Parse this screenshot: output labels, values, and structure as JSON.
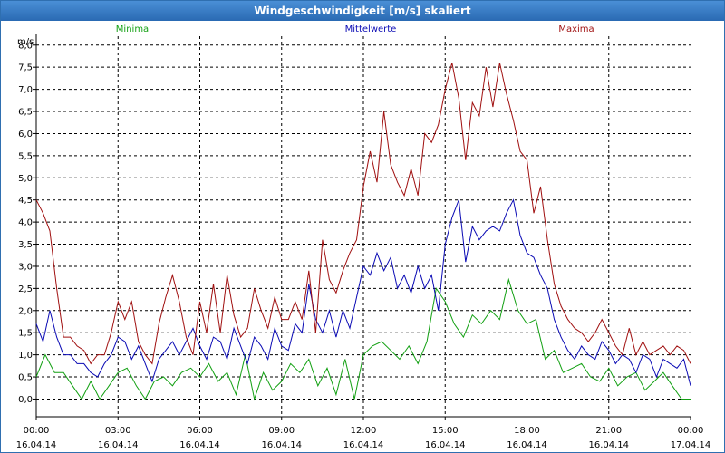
{
  "window": {
    "title": "Windgeschwindigkeit [m/s] skaliert"
  },
  "colors": {
    "minima": "#12a012",
    "mittelwerte": "#0a0ab4",
    "maxima": "#a01010",
    "grid": "#000000"
  },
  "chart_data": {
    "type": "line",
    "title": "Windgeschwindigkeit [m/s] skaliert",
    "ylabel": "m/s",
    "ylim": [
      -0.4,
      8.2
    ],
    "yticks": [
      "0,0",
      "0,5",
      "1,0",
      "1,5",
      "2,0",
      "2,5",
      "3,0",
      "3,5",
      "4,0",
      "4,5",
      "5,0",
      "5,5",
      "6,0",
      "6,5",
      "7,0",
      "7,5",
      "8,0"
    ],
    "xticks": [
      {
        "time": "00:00",
        "date": "16.04.14"
      },
      {
        "time": "03:00",
        "date": "16.04.14"
      },
      {
        "time": "06:00",
        "date": "16.04.14"
      },
      {
        "time": "09:00",
        "date": "16.04.14"
      },
      {
        "time": "12:00",
        "date": "16.04.14"
      },
      {
        "time": "15:00",
        "date": "16.04.14"
      },
      {
        "time": "18:00",
        "date": "16.04.14"
      },
      {
        "time": "21:00",
        "date": "16.04.14"
      },
      {
        "time": "00:00",
        "date": "17.04.14"
      }
    ],
    "x_hours_range": [
      0,
      24
    ],
    "legend": [
      "Minima",
      "Mittelwerte",
      "Maxima"
    ],
    "series": [
      {
        "name": "Minima",
        "color": "#12a012",
        "points": [
          [
            0,
            0.5
          ],
          [
            0.33,
            1.0
          ],
          [
            0.67,
            0.6
          ],
          [
            1,
            0.6
          ],
          [
            1.33,
            0.3
          ],
          [
            1.67,
            0.0
          ],
          [
            2,
            0.4
          ],
          [
            2.33,
            0.0
          ],
          [
            2.67,
            0.3
          ],
          [
            3,
            0.6
          ],
          [
            3.33,
            0.7
          ],
          [
            3.67,
            0.3
          ],
          [
            4,
            0.0
          ],
          [
            4.33,
            0.4
          ],
          [
            4.67,
            0.5
          ],
          [
            5,
            0.3
          ],
          [
            5.33,
            0.6
          ],
          [
            5.67,
            0.7
          ],
          [
            6,
            0.5
          ],
          [
            6.33,
            0.8
          ],
          [
            6.67,
            0.4
          ],
          [
            7,
            0.6
          ],
          [
            7.33,
            0.1
          ],
          [
            7.67,
            1.0
          ],
          [
            8,
            0.0
          ],
          [
            8.33,
            0.6
          ],
          [
            8.67,
            0.2
          ],
          [
            9,
            0.4
          ],
          [
            9.33,
            0.8
          ],
          [
            9.67,
            0.6
          ],
          [
            10,
            0.9
          ],
          [
            10.33,
            0.3
          ],
          [
            10.67,
            0.7
          ],
          [
            11,
            0.1
          ],
          [
            11.33,
            0.9
          ],
          [
            11.67,
            0.0
          ],
          [
            12,
            1.0
          ],
          [
            12.33,
            1.2
          ],
          [
            12.67,
            1.3
          ],
          [
            13,
            1.1
          ],
          [
            13.33,
            0.9
          ],
          [
            13.67,
            1.2
          ],
          [
            14,
            0.8
          ],
          [
            14.33,
            1.3
          ],
          [
            14.67,
            2.5
          ],
          [
            15,
            2.2
          ],
          [
            15.33,
            1.7
          ],
          [
            15.67,
            1.4
          ],
          [
            16,
            1.9
          ],
          [
            16.33,
            1.7
          ],
          [
            16.67,
            2.0
          ],
          [
            17,
            1.8
          ],
          [
            17.33,
            2.7
          ],
          [
            17.67,
            2.0
          ],
          [
            18,
            1.7
          ],
          [
            18.33,
            1.8
          ],
          [
            18.67,
            0.9
          ],
          [
            19,
            1.1
          ],
          [
            19.33,
            0.6
          ],
          [
            19.67,
            0.7
          ],
          [
            20,
            0.8
          ],
          [
            20.33,
            0.5
          ],
          [
            20.67,
            0.4
          ],
          [
            21,
            0.7
          ],
          [
            21.33,
            0.3
          ],
          [
            21.67,
            0.5
          ],
          [
            22,
            0.6
          ],
          [
            22.33,
            0.2
          ],
          [
            22.67,
            0.4
          ],
          [
            23,
            0.6
          ],
          [
            23.33,
            0.3
          ],
          [
            23.67,
            0.0
          ],
          [
            24,
            0.0
          ]
        ]
      },
      {
        "name": "Mittelwerte",
        "color": "#0a0ab4",
        "points": [
          [
            0,
            1.7
          ],
          [
            0.25,
            1.3
          ],
          [
            0.5,
            2.0
          ],
          [
            0.75,
            1.4
          ],
          [
            1,
            1.0
          ],
          [
            1.25,
            1.0
          ],
          [
            1.5,
            0.8
          ],
          [
            1.75,
            0.8
          ],
          [
            2,
            0.6
          ],
          [
            2.25,
            0.5
          ],
          [
            2.5,
            0.8
          ],
          [
            2.75,
            1.0
          ],
          [
            3,
            1.4
          ],
          [
            3.25,
            1.3
          ],
          [
            3.5,
            0.9
          ],
          [
            3.75,
            1.2
          ],
          [
            4,
            0.8
          ],
          [
            4.25,
            0.4
          ],
          [
            4.5,
            0.9
          ],
          [
            4.75,
            1.1
          ],
          [
            5,
            1.3
          ],
          [
            5.25,
            1.0
          ],
          [
            5.5,
            1.3
          ],
          [
            5.75,
            1.6
          ],
          [
            6,
            1.2
          ],
          [
            6.25,
            0.9
          ],
          [
            6.5,
            1.4
          ],
          [
            6.75,
            1.3
          ],
          [
            7,
            0.9
          ],
          [
            7.25,
            1.6
          ],
          [
            7.5,
            1.2
          ],
          [
            7.75,
            0.8
          ],
          [
            8,
            1.4
          ],
          [
            8.25,
            1.2
          ],
          [
            8.5,
            0.9
          ],
          [
            8.75,
            1.6
          ],
          [
            9,
            1.2
          ],
          [
            9.25,
            1.1
          ],
          [
            9.5,
            1.7
          ],
          [
            9.75,
            1.5
          ],
          [
            10,
            2.6
          ],
          [
            10.25,
            1.8
          ],
          [
            10.5,
            1.5
          ],
          [
            10.75,
            2.0
          ],
          [
            11,
            1.4
          ],
          [
            11.25,
            2.0
          ],
          [
            11.5,
            1.6
          ],
          [
            11.75,
            2.3
          ],
          [
            12,
            3.0
          ],
          [
            12.25,
            2.8
          ],
          [
            12.5,
            3.3
          ],
          [
            12.75,
            2.9
          ],
          [
            13,
            3.2
          ],
          [
            13.25,
            2.5
          ],
          [
            13.5,
            2.8
          ],
          [
            13.75,
            2.4
          ],
          [
            14,
            3.0
          ],
          [
            14.25,
            2.5
          ],
          [
            14.5,
            2.8
          ],
          [
            14.75,
            2.0
          ],
          [
            15,
            3.5
          ],
          [
            15.25,
            4.1
          ],
          [
            15.5,
            4.5
          ],
          [
            15.75,
            3.1
          ],
          [
            16,
            3.9
          ],
          [
            16.25,
            3.6
          ],
          [
            16.5,
            3.8
          ],
          [
            16.75,
            3.9
          ],
          [
            17,
            3.8
          ],
          [
            17.25,
            4.2
          ],
          [
            17.5,
            4.5
          ],
          [
            17.75,
            3.7
          ],
          [
            18,
            3.3
          ],
          [
            18.25,
            3.2
          ],
          [
            18.5,
            2.8
          ],
          [
            18.75,
            2.5
          ],
          [
            19,
            1.8
          ],
          [
            19.25,
            1.4
          ],
          [
            19.5,
            1.1
          ],
          [
            19.75,
            0.9
          ],
          [
            20,
            1.2
          ],
          [
            20.25,
            1.0
          ],
          [
            20.5,
            0.9
          ],
          [
            20.75,
            1.3
          ],
          [
            21,
            1.1
          ],
          [
            21.25,
            0.8
          ],
          [
            21.5,
            1.0
          ],
          [
            21.75,
            0.9
          ],
          [
            22,
            0.6
          ],
          [
            22.25,
            1.0
          ],
          [
            22.5,
            0.9
          ],
          [
            22.75,
            0.5
          ],
          [
            23,
            0.9
          ],
          [
            23.25,
            0.8
          ],
          [
            23.5,
            0.7
          ],
          [
            23.75,
            0.9
          ],
          [
            24,
            0.3
          ]
        ]
      },
      {
        "name": "Maxima",
        "color": "#a01010",
        "points": [
          [
            0,
            4.5
          ],
          [
            0.25,
            4.2
          ],
          [
            0.5,
            3.8
          ],
          [
            0.75,
            2.5
          ],
          [
            1,
            1.4
          ],
          [
            1.25,
            1.4
          ],
          [
            1.5,
            1.2
          ],
          [
            1.75,
            1.1
          ],
          [
            2,
            0.8
          ],
          [
            2.25,
            1.0
          ],
          [
            2.5,
            1.0
          ],
          [
            2.75,
            1.5
          ],
          [
            3,
            2.2
          ],
          [
            3.25,
            1.8
          ],
          [
            3.5,
            2.2
          ],
          [
            3.75,
            1.3
          ],
          [
            4,
            1.0
          ],
          [
            4.25,
            0.8
          ],
          [
            4.5,
            1.7
          ],
          [
            4.75,
            2.3
          ],
          [
            5,
            2.8
          ],
          [
            5.25,
            2.2
          ],
          [
            5.5,
            1.4
          ],
          [
            5.75,
            1.0
          ],
          [
            6,
            2.2
          ],
          [
            6.25,
            1.5
          ],
          [
            6.5,
            2.6
          ],
          [
            6.75,
            1.5
          ],
          [
            7,
            2.8
          ],
          [
            7.25,
            1.9
          ],
          [
            7.5,
            1.4
          ],
          [
            7.75,
            1.6
          ],
          [
            8,
            2.5
          ],
          [
            8.25,
            2.0
          ],
          [
            8.5,
            1.6
          ],
          [
            8.75,
            2.3
          ],
          [
            9,
            1.8
          ],
          [
            9.25,
            1.8
          ],
          [
            9.5,
            2.2
          ],
          [
            9.75,
            1.8
          ],
          [
            10,
            2.9
          ],
          [
            10.25,
            1.5
          ],
          [
            10.5,
            3.6
          ],
          [
            10.75,
            2.7
          ],
          [
            11,
            2.4
          ],
          [
            11.25,
            2.9
          ],
          [
            11.5,
            3.3
          ],
          [
            11.75,
            3.6
          ],
          [
            12,
            4.8
          ],
          [
            12.25,
            5.6
          ],
          [
            12.5,
            4.9
          ],
          [
            12.75,
            6.5
          ],
          [
            13,
            5.3
          ],
          [
            13.25,
            4.9
          ],
          [
            13.5,
            4.6
          ],
          [
            13.75,
            5.2
          ],
          [
            14,
            4.6
          ],
          [
            14.25,
            6.0
          ],
          [
            14.5,
            5.8
          ],
          [
            14.75,
            6.2
          ],
          [
            15,
            7.0
          ],
          [
            15.25,
            7.6
          ],
          [
            15.5,
            6.8
          ],
          [
            15.75,
            5.4
          ],
          [
            16,
            6.7
          ],
          [
            16.25,
            6.4
          ],
          [
            16.5,
            7.5
          ],
          [
            16.75,
            6.6
          ],
          [
            17,
            7.6
          ],
          [
            17.25,
            6.9
          ],
          [
            17.5,
            6.3
          ],
          [
            17.75,
            5.6
          ],
          [
            18,
            5.4
          ],
          [
            18.25,
            4.2
          ],
          [
            18.5,
            4.8
          ],
          [
            18.75,
            3.6
          ],
          [
            19,
            2.6
          ],
          [
            19.25,
            2.1
          ],
          [
            19.5,
            1.8
          ],
          [
            19.75,
            1.6
          ],
          [
            20,
            1.5
          ],
          [
            20.25,
            1.3
          ],
          [
            20.5,
            1.5
          ],
          [
            20.75,
            1.8
          ],
          [
            21,
            1.5
          ],
          [
            21.25,
            1.2
          ],
          [
            21.5,
            1.0
          ],
          [
            21.75,
            1.6
          ],
          [
            22,
            1.0
          ],
          [
            22.25,
            1.3
          ],
          [
            22.5,
            1.0
          ],
          [
            22.75,
            1.1
          ],
          [
            23,
            1.2
          ],
          [
            23.25,
            1.0
          ],
          [
            23.5,
            1.2
          ],
          [
            23.75,
            1.1
          ],
          [
            24,
            0.8
          ]
        ]
      }
    ]
  }
}
